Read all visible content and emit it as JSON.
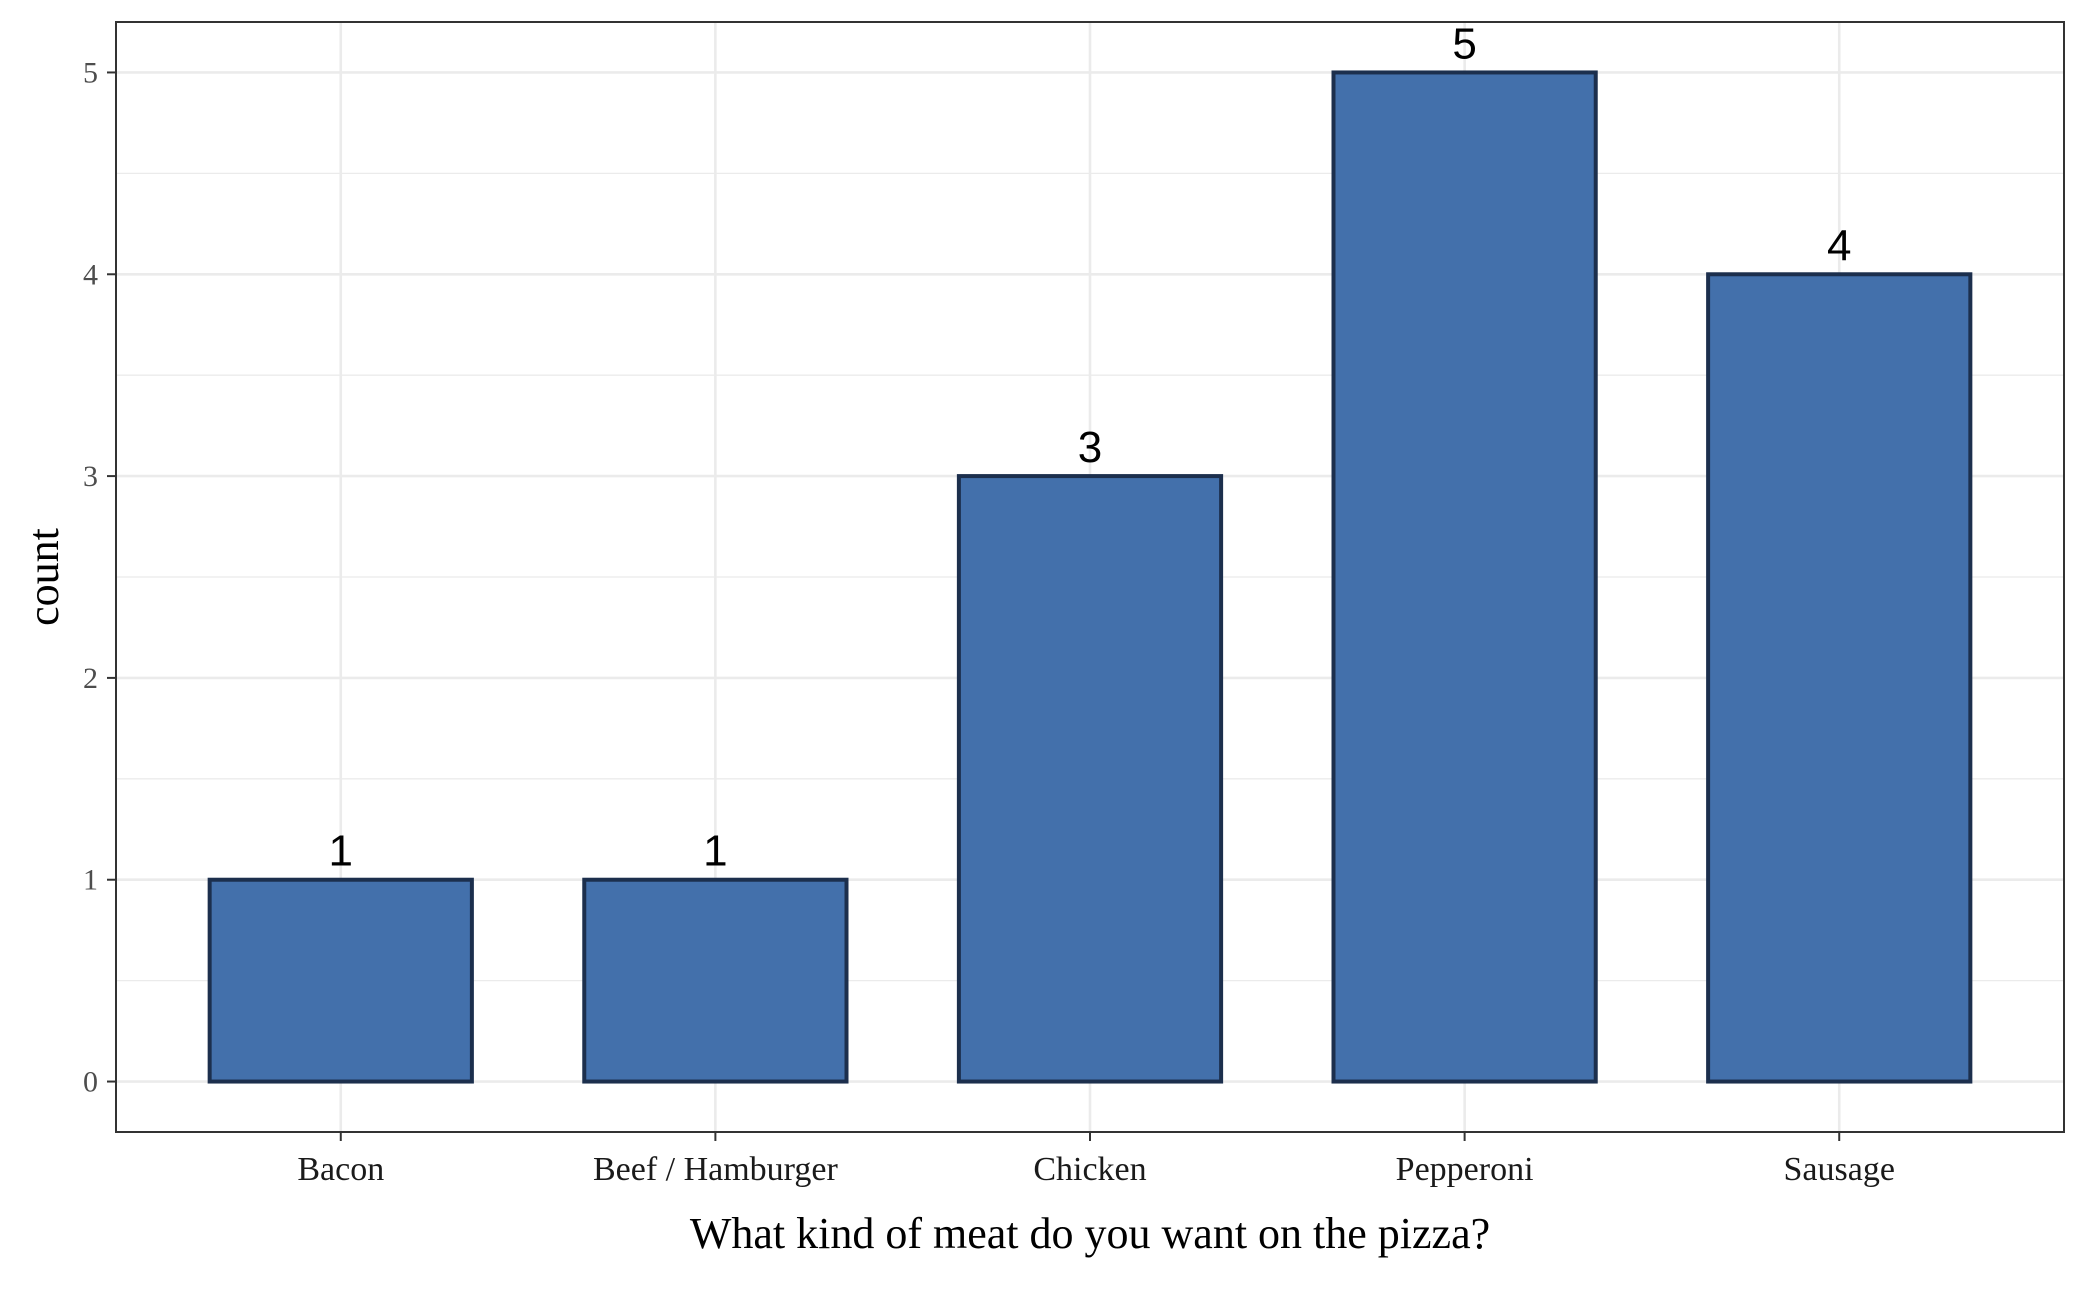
{
  "chart_data": {
    "type": "bar",
    "categories": [
      "Bacon",
      "Beef / Hamburger",
      "Chicken",
      "Pepperoni",
      "Sausage"
    ],
    "values": [
      1,
      1,
      3,
      5,
      4
    ],
    "data_labels": [
      "1",
      "1",
      "3",
      "5",
      "4"
    ],
    "title": "",
    "xlabel": "What kind of meat do you want on the pizza?",
    "ylabel": "count",
    "ylim": [
      -0.25,
      5.25
    ],
    "yticks": [
      0,
      1,
      2,
      3,
      4,
      5
    ],
    "grid": true,
    "legend": "none",
    "colors": {
      "bar_fill": "#4370ab",
      "bar_stroke": "#1c2f4d",
      "grid": "#ebebeb",
      "panel_border": "#333333",
      "tick": "#4d4d4d"
    }
  }
}
